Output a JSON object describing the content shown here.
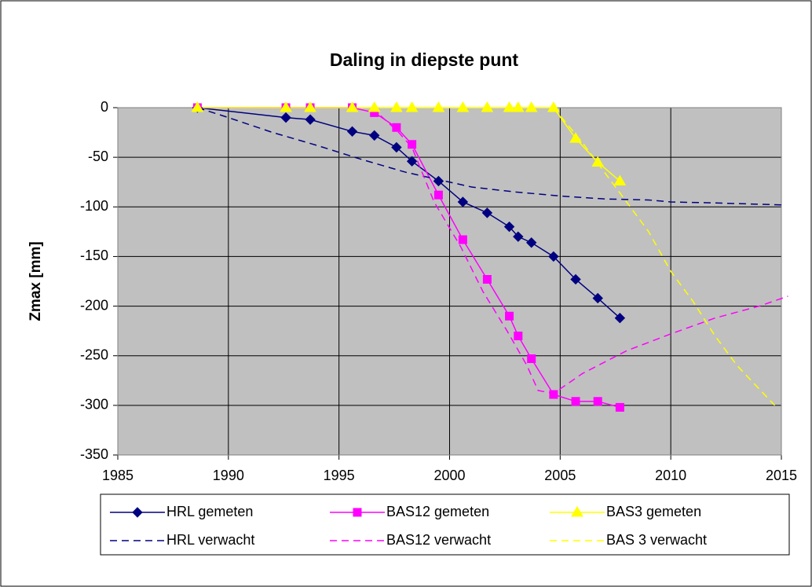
{
  "chart_data": {
    "type": "line",
    "title": "Daling in diepste punt",
    "y_label": "Zmax [mm]",
    "xlim": [
      1985,
      2015
    ],
    "xticks": [
      1985,
      1990,
      1995,
      2000,
      2005,
      2010,
      2015
    ],
    "ylim": [
      -350,
      0
    ],
    "yticks": [
      0,
      -50,
      -100,
      -150,
      -200,
      -250,
      -300,
      -350
    ],
    "grid": true,
    "legend": "bottom",
    "series": [
      {
        "name": "HRL gemeten",
        "color": "#000080",
        "marker": "diamond",
        "dashed": false,
        "x": [
          1988.6,
          1992.6,
          1993.7,
          1995.6,
          1996.6,
          1997.6,
          1998.3,
          1999.5,
          2000.6,
          2001.7,
          2002.7,
          2003.1,
          2003.7,
          2004.7,
          2005.7,
          2006.7,
          2007.7
        ],
        "values": [
          0,
          -10,
          -12,
          -24,
          -28,
          -40,
          -54,
          -74,
          -95,
          -106,
          -120,
          -130,
          -136,
          -150,
          -173,
          -192,
          -212
        ]
      },
      {
        "name": "BAS12 gemeten",
        "color": "#ff00ff",
        "marker": "square",
        "dashed": false,
        "x": [
          1988.6,
          1992.6,
          1993.7,
          1995.6,
          1996.6,
          1997.6,
          1998.3,
          1999.5,
          2000.6,
          2001.7,
          2002.7,
          2003.1,
          2003.7,
          2004.7,
          2005.7,
          2006.7,
          2007.7
        ],
        "values": [
          0,
          0,
          0,
          0,
          -5,
          -20,
          -37,
          -88,
          -133,
          -173,
          -210,
          -230,
          -253,
          -289,
          -296,
          -296,
          -302
        ]
      },
      {
        "name": "BAS3 gemeten",
        "color": "#ffff00",
        "marker": "triangle",
        "dashed": false,
        "x": [
          1988.6,
          1992.6,
          1993.7,
          1995.6,
          1996.6,
          1997.6,
          1998.3,
          1999.5,
          2000.6,
          2001.7,
          2002.7,
          2003.1,
          2003.7,
          2004.7,
          2005.7,
          2006.7,
          2007.7
        ],
        "values": [
          0,
          0,
          0,
          0,
          0,
          0,
          0,
          0,
          0,
          0,
          0,
          0,
          0,
          0,
          -31,
          -55,
          -74
        ]
      },
      {
        "name": "HRL verwacht",
        "color": "#000080",
        "marker": "none",
        "dashed": true,
        "x": [
          1988.6,
          1990,
          1992,
          1994,
          1996,
          1998,
          2000,
          2001,
          2003,
          2005,
          2007,
          2009,
          2010,
          2012,
          2015
        ],
        "values": [
          0,
          -10,
          -25,
          -38,
          -52,
          -65,
          -75,
          -80,
          -85,
          -89,
          -92,
          -93,
          -95,
          -96,
          -98
        ]
      },
      {
        "name": "BAS12 verwacht",
        "color": "#ff00ff",
        "marker": "none",
        "dashed": true,
        "x": [
          1996.5,
          1997.7,
          1998.3,
          1999.3,
          2000.5,
          2001.5,
          2002.6,
          2003.5,
          2004,
          2004.7,
          2006,
          2008,
          2010,
          2012,
          2014,
          2015.3
        ],
        "values": [
          0,
          -25,
          -40,
          -95,
          -140,
          -185,
          -225,
          -260,
          -285,
          -288,
          -268,
          -245,
          -228,
          -212,
          -200,
          -190
        ]
      },
      {
        "name": "BAS 3 verwacht",
        "color": "#ffff00",
        "marker": "none",
        "dashed": true,
        "x": [
          2004.7,
          2006,
          2007,
          2008,
          2009,
          2010,
          2011,
          2012,
          2013,
          2014.7
        ],
        "values": [
          0,
          -35,
          -65,
          -95,
          -125,
          -165,
          -195,
          -230,
          -260,
          -300
        ]
      }
    ]
  }
}
